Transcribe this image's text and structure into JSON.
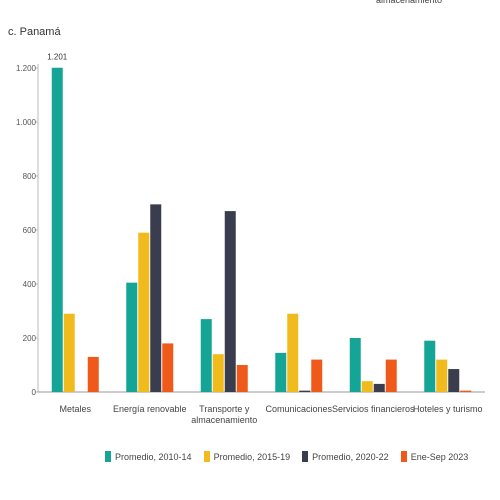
{
  "header": {
    "top_note": "almacenamiento",
    "panel_title": "c. Panamá"
  },
  "chart_data": {
    "type": "bar",
    "title": "c. Panamá",
    "xlabel": "",
    "ylabel": "",
    "ylim": [
      0,
      1200
    ],
    "yticks": [
      0,
      200,
      400,
      600,
      800,
      1000,
      1200
    ],
    "ytick_labels": [
      "0",
      "200",
      "400",
      "600",
      "800",
      "1.000",
      "1.200"
    ],
    "grid": false,
    "legend_position": "bottom",
    "categories": [
      "Metales",
      "Energía renovable",
      "Transporte y almacenamiento",
      "Comunicaciones",
      "Servicios financieros",
      "Hoteles y turismo"
    ],
    "category_lines": [
      [
        "Metales"
      ],
      [
        "Energía renovable"
      ],
      [
        "Transporte y",
        "almacenamiento"
      ],
      [
        "Comunicaciones"
      ],
      [
        "Servicios financieros"
      ],
      [
        "Hoteles y turismo"
      ]
    ],
    "series": [
      {
        "name": "Promedio, 2010-14",
        "color": "#14a596",
        "values": [
          1201,
          405,
          270,
          145,
          200,
          190
        ]
      },
      {
        "name": "Promedio, 2015-19",
        "color": "#f2bb1d",
        "values": [
          290,
          590,
          140,
          290,
          40,
          120
        ]
      },
      {
        "name": "Promedio, 2020-22",
        "color": "#3a3d4e",
        "values": [
          0,
          695,
          670,
          5,
          30,
          85
        ]
      },
      {
        "name": "Ene-Sep 2023",
        "color": "#ef5a1a",
        "values": [
          130,
          180,
          100,
          120,
          120,
          5
        ]
      }
    ],
    "annotations": [
      {
        "series": 0,
        "category": 0,
        "text": "1.201"
      }
    ]
  }
}
